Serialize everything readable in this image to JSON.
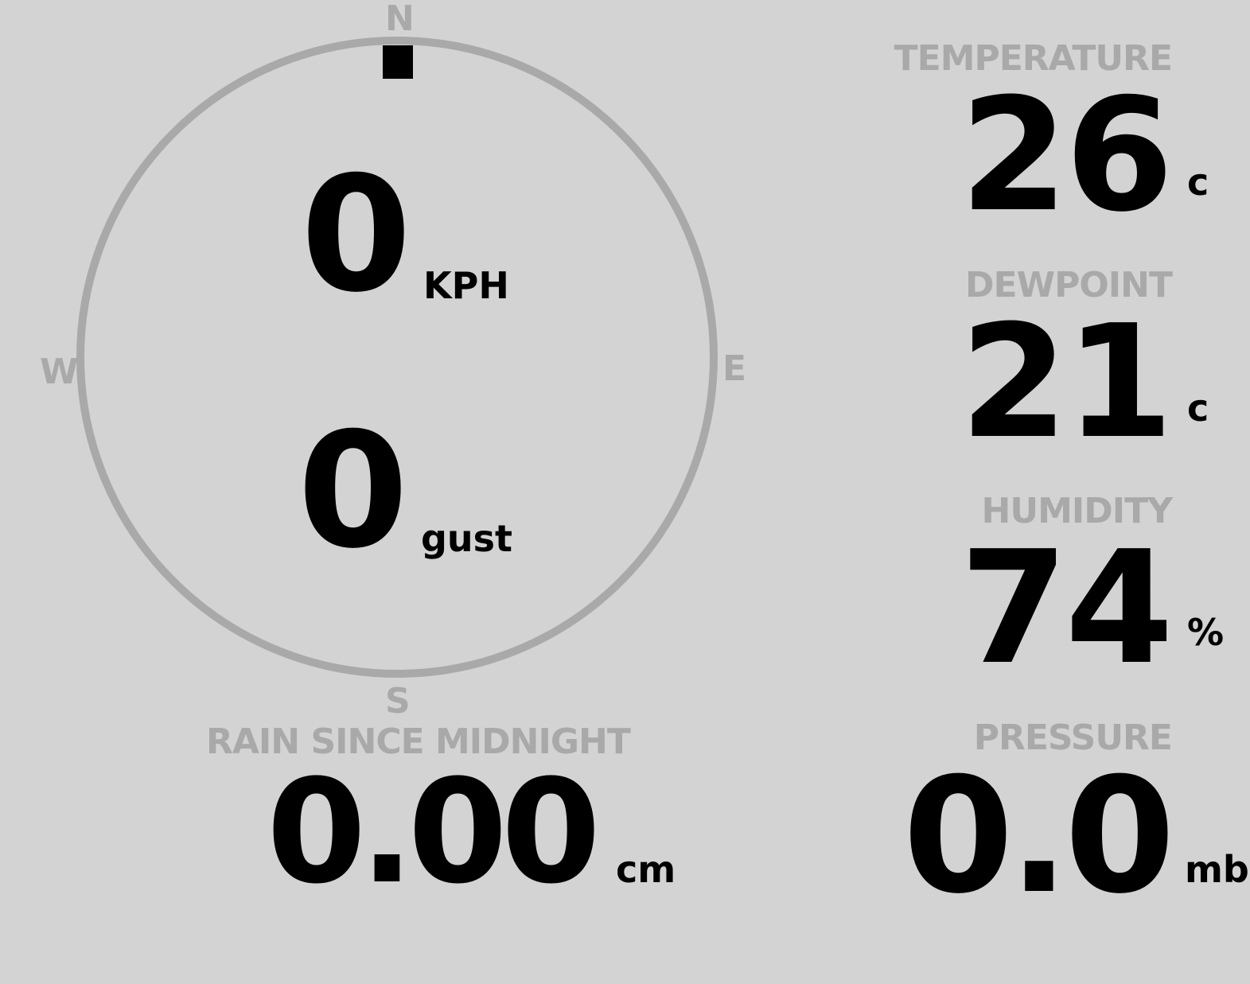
{
  "compass": {
    "north": "N",
    "south": "S",
    "east": "E",
    "west": "W",
    "wind_direction_deg": 0,
    "colors": {
      "ring": "#a9a9a9",
      "pointer": "#000000"
    }
  },
  "wind": {
    "speed": "0",
    "speed_unit": "KPH",
    "gust": "0",
    "gust_unit": "gust"
  },
  "rain": {
    "label": "RAIN SINCE MIDNIGHT",
    "value": "0.00",
    "unit": "cm"
  },
  "temperature": {
    "label": "TEMPERATURE",
    "value": "26",
    "unit": "c"
  },
  "dewpoint": {
    "label": "DEWPOINT",
    "value": "21",
    "unit": "c"
  },
  "humidity": {
    "label": "HUMIDITY",
    "value": "74",
    "unit": "%"
  },
  "pressure": {
    "label": "PRESSURE",
    "value": "0.0",
    "unit": "mb"
  }
}
